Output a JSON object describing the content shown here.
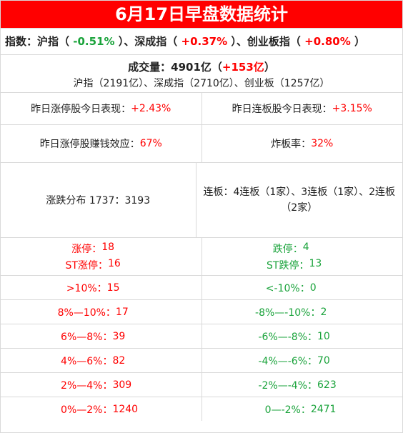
{
  "title": "6月17日早盘数据统计",
  "indices": {
    "label": "指数：",
    "sh_name": "沪指",
    "sh_change": "-0.51%",
    "sz_name": "深成指",
    "sz_change": "+0.37%",
    "cyb_name": "创业板指",
    "cyb_change": "+0.80%",
    "sep": "、",
    "paren_open": "（ ",
    "paren_close": " ）"
  },
  "volume": {
    "label": "成交量：4901亿（",
    "change": "+153亿",
    "close": "）",
    "breakdown": "沪指（2191亿）、深成指（2710亿）、创业板（1257亿）"
  },
  "performance": {
    "limit_up_label": "昨日涨停股今日表现：",
    "limit_up_value": "+2.43%",
    "consec_label": "昨日连板股今日表现：",
    "consec_value": "+3.15%"
  },
  "effect": {
    "money_label": "昨日涨停股赚钱效应：",
    "money_value": "67%",
    "broken_label": "炸板率：",
    "broken_value": "32%"
  },
  "distribution": {
    "ratio": "涨跌分布 1737：3193",
    "boards": "连板：4连板（1家）、3连板（1家）、2连板（2家）"
  },
  "limits": {
    "up_label": "涨停：",
    "up_value": "18",
    "st_up_label": "ST涨停：",
    "st_up_value": "16",
    "down_label": "跌停：",
    "down_value": "4",
    "st_down_label": "ST跌停：",
    "st_down_value": "13"
  },
  "ranges": [
    {
      "up_label": ">10%：",
      "up_value": "15",
      "down_label": "<-10%：",
      "down_value": "0"
    },
    {
      "up_label": "8%—10%：",
      "up_value": "17",
      "down_label": "-8%—-10%：",
      "down_value": "2"
    },
    {
      "up_label": "6%—8%：",
      "up_value": "39",
      "down_label": "-6%—-8%：",
      "down_value": "10"
    },
    {
      "up_label": "4%—6%：",
      "up_value": "82",
      "down_label": "-4%—-6%：",
      "down_value": "70"
    },
    {
      "up_label": "2%—4%：",
      "up_value": "309",
      "down_label": "-2%—-4%：",
      "down_value": "623"
    },
    {
      "up_label": "0%—2%：",
      "up_value": "1240",
      "down_label": "0—-2%：",
      "down_value": "2471"
    }
  ],
  "colors": {
    "title_bg": "#ff0000",
    "up": "#ff0000",
    "down": "#1aa33b"
  }
}
